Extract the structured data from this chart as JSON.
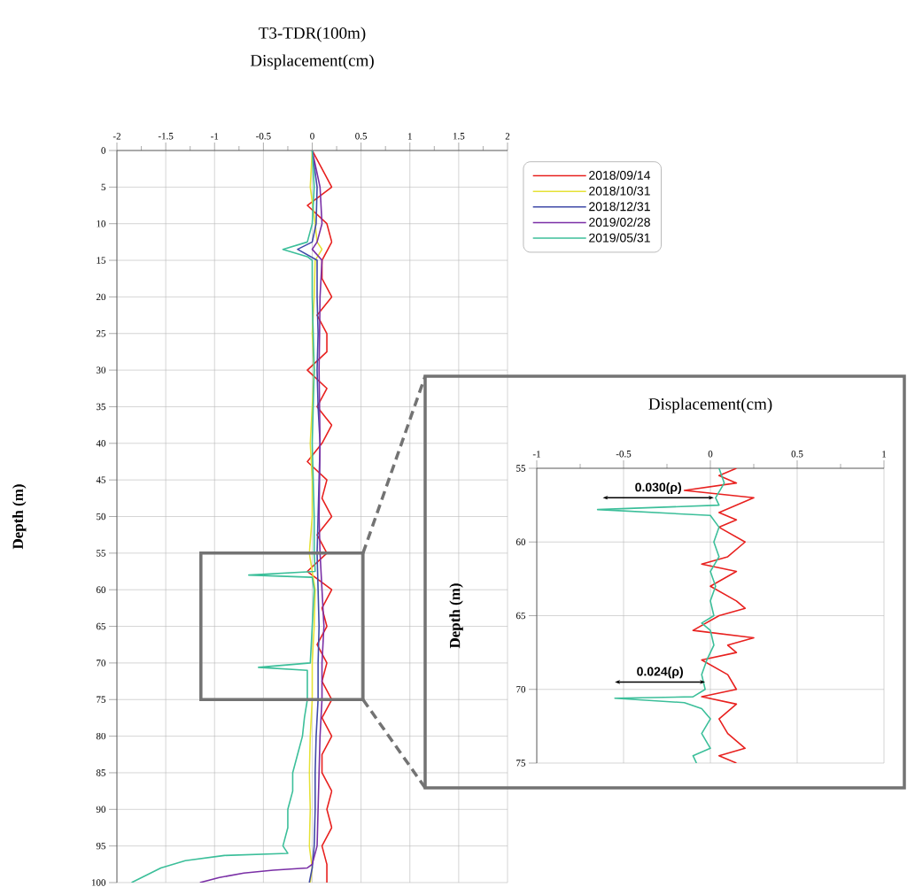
{
  "chart_data": [
    {
      "type": "line",
      "title": "T3-TDR(100m)",
      "xlabel": "Displacement(cm)",
      "ylabel": "Depth (m)",
      "xlim": [
        -2,
        2
      ],
      "xticks": [
        -2,
        -1.5,
        -1,
        -0.5,
        0,
        0.5,
        1,
        1.5,
        2
      ],
      "ylim": [
        100,
        0
      ],
      "yticks": [
        0,
        5,
        10,
        15,
        20,
        25,
        30,
        35,
        40,
        45,
        50,
        55,
        60,
        65,
        70,
        75,
        80,
        85,
        90,
        95,
        100
      ],
      "grid": true,
      "legend": "top right",
      "line_style": "solid",
      "series": [
        {
          "name": "2018/09/14",
          "color": "#e8211f",
          "x": [
            0,
            0.1,
            0.2,
            -0.05,
            0.15,
            0.2,
            0.1,
            0.1,
            0.2,
            0.05,
            0.15,
            0.15,
            -0.05,
            0.15,
            0.05,
            0.2,
            0.1,
            -0.05,
            0.15,
            0.1,
            0.2,
            0.05,
            0.15,
            -0.05,
            0.2,
            0.1,
            0.15,
            0.05,
            0.15,
            0.1,
            0.2,
            0.1,
            0.2,
            0.1,
            0.1,
            0.2,
            0.15,
            0.2,
            0.1,
            0.15,
            0.15
          ],
          "values": [
            0,
            2.5,
            5,
            7.5,
            10,
            12.5,
            15,
            17.5,
            20,
            22.5,
            25,
            27.5,
            30,
            32.5,
            35,
            37.5,
            40,
            42.5,
            45,
            47.5,
            50,
            52.5,
            55,
            57.5,
            60,
            62.5,
            65,
            67.5,
            70,
            72.5,
            75,
            77.5,
            80,
            82.5,
            85,
            87.5,
            90,
            92.5,
            95,
            97.5,
            100
          ]
        },
        {
          "name": "2018/10/31",
          "color": "#e6e236",
          "x": [
            0,
            -0.02,
            0.03,
            0.05,
            0.1,
            0.03,
            0.02,
            0.0,
            0.02,
            0.0,
            -0.02,
            0.0,
            0.0,
            -0.03,
            0.03,
            0.02,
            0.0,
            0.0,
            -0.02,
            -0.03,
            -0.02,
            -0.03,
            0.0,
            -0.02
          ],
          "values": [
            0,
            5,
            10,
            12.5,
            13.5,
            15,
            20,
            25,
            30,
            35,
            40,
            45,
            50,
            55,
            60,
            65,
            70,
            75,
            80,
            85,
            90,
            95,
            98,
            100
          ]
        },
        {
          "name": "2018/12/31",
          "color": "#3f4aa8",
          "x": [
            0,
            0.05,
            0.04,
            0.0,
            -0.15,
            0.05,
            0.05,
            0.06,
            0.05,
            0.06,
            0.08,
            0.07,
            0.06,
            0.05,
            0.06,
            0.07,
            0.06,
            0.06,
            0.04,
            0.03,
            0.03,
            0.02,
            0.0,
            -0.03
          ],
          "values": [
            0,
            5,
            10,
            12.5,
            13.5,
            15,
            20,
            25,
            30,
            35,
            40,
            45,
            50,
            55,
            60,
            65,
            70,
            75,
            80,
            85,
            90,
            95,
            98,
            100
          ]
        },
        {
          "name": "2019/02/28",
          "color": "#7a2fa6",
          "x": [
            0,
            0.08,
            0.1,
            0.05,
            0.0,
            0.1,
            0.08,
            0.07,
            0.08,
            0.07,
            0.08,
            0.1,
            0.12,
            0.1,
            0.1,
            0.08,
            0.07,
            0.06,
            0.05,
            0.0,
            -0.05,
            -0.4,
            -0.7,
            -0.95,
            -1.15
          ],
          "values": [
            0,
            5,
            10,
            12.5,
            13.5,
            15,
            20,
            30,
            40,
            50,
            55,
            60,
            65,
            70,
            75,
            80,
            85,
            90,
            95,
            97.5,
            98,
            98.3,
            98.7,
            99.3,
            100
          ]
        },
        {
          "name": "2019/05/31",
          "color": "#3cbf9a",
          "x": [
            0,
            0.02,
            0.0,
            -0.05,
            -0.3,
            -0.05,
            0.0,
            0.0,
            0.02,
            0.0,
            0.02,
            0.02,
            0.03,
            -0.65,
            0.0,
            0.02,
            0.0,
            -0.02,
            -0.55,
            -0.05,
            -0.05,
            -0.08,
            -0.1,
            -0.15,
            -0.2,
            -0.2,
            -0.25,
            -0.25,
            -0.3,
            -0.25,
            -0.9,
            -1.3,
            -1.55,
            -1.7,
            -1.85
          ],
          "values": [
            0,
            5,
            10,
            12.5,
            13.5,
            14.5,
            15,
            20,
            30,
            40,
            50,
            55,
            57.5,
            58,
            58.3,
            60,
            65,
            70,
            70.6,
            71,
            75,
            77.5,
            80,
            82.5,
            85,
            87.5,
            90,
            92.5,
            95,
            96,
            96.3,
            97,
            98,
            99,
            100
          ]
        }
      ]
    },
    {
      "type": "line",
      "xlabel": "Displacement(cm)",
      "ylabel": "Depth (m)",
      "xlim": [
        -1,
        1
      ],
      "xticks": [
        -1,
        -0.5,
        0,
        0.5,
        1
      ],
      "ylim": [
        75,
        55
      ],
      "yticks": [
        55,
        60,
        65,
        70,
        75
      ],
      "grid": true,
      "line_style": "solid",
      "annotations": [
        "0.030(ρ)",
        "0.024(ρ)"
      ],
      "series": [
        {
          "color": "#e8211f",
          "x": [
            0.15,
            0.05,
            0.15,
            -0.15,
            0.25,
            0.05,
            0.15,
            0.05,
            0.2,
            0.1,
            -0.05,
            0.15,
            0.0,
            0.15,
            0.2,
            0.05,
            -0.1,
            0.25,
            0.1,
            0.15,
            -0.05,
            0.1,
            0.15,
            -0.05,
            0.15,
            0.05,
            0.1,
            0.2,
            0.05,
            0.15
          ],
          "values": [
            55,
            55.5,
            56,
            56.5,
            57,
            58,
            58.5,
            59,
            60,
            61,
            61.5,
            62,
            63,
            64,
            64.5,
            65,
            66,
            66.5,
            67,
            67.5,
            68,
            69,
            70,
            70.5,
            71,
            72,
            73,
            74,
            74.5,
            75
          ]
        },
        {
          "color": "#3cbf9a",
          "x": [
            0.05,
            0.08,
            0.03,
            0.05,
            -0.65,
            0.0,
            0.05,
            0.02,
            0.05,
            0.0,
            0.03,
            0.0,
            0.02,
            -0.05,
            0.0,
            0.02,
            -0.02,
            -0.05,
            -0.03,
            -0.1,
            -0.55,
            -0.15,
            -0.05,
            0.0,
            -0.05,
            0.0,
            -0.1,
            -0.08
          ],
          "values": [
            55,
            56,
            57,
            57.5,
            57.8,
            58.2,
            59,
            60,
            61,
            62,
            63,
            64,
            65,
            65.5,
            66,
            67,
            68,
            69,
            70,
            70.5,
            70.6,
            70.9,
            71.3,
            72,
            73,
            74,
            74.5,
            75
          ]
        }
      ]
    }
  ]
}
